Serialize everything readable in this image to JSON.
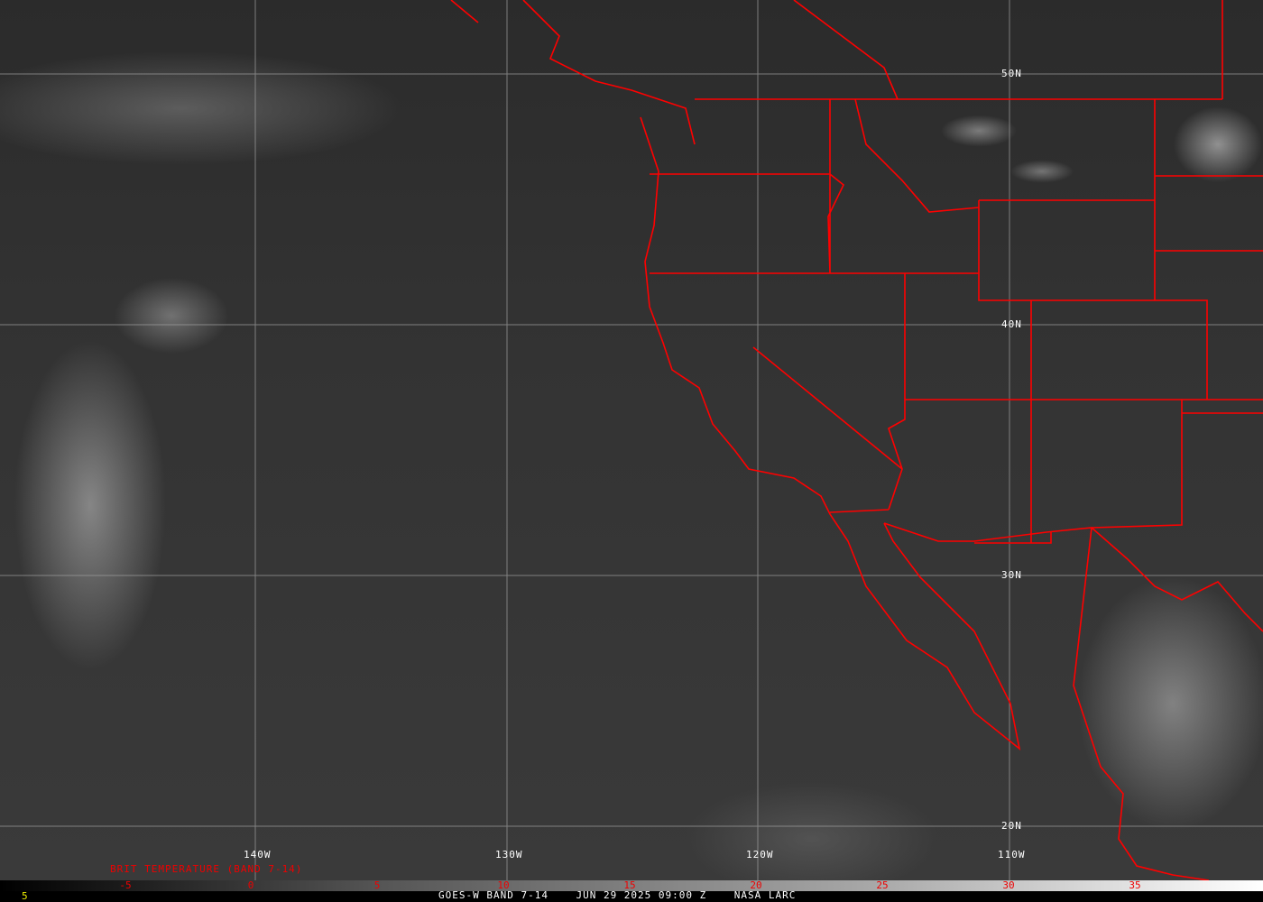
{
  "map": {
    "lat_labels": [
      "50N",
      "40N",
      "30N",
      "20N"
    ],
    "lon_labels": [
      "140W",
      "130W",
      "120W",
      "110W"
    ],
    "colors": {
      "borders": "#ff0000",
      "grid": "#a0a0a0",
      "labels": "#ffffff"
    }
  },
  "colorbar": {
    "title": "BRIT TEMPERATURE (BAND 7-14)",
    "ticks": [
      "-5",
      "0",
      "5",
      "10",
      "15",
      "20",
      "25",
      "30",
      "35"
    ],
    "corner_value": "5"
  },
  "footer": {
    "text": "GOES-W BAND 7-14    JUN 29 2025 09:00 Z    NASA LARC"
  }
}
